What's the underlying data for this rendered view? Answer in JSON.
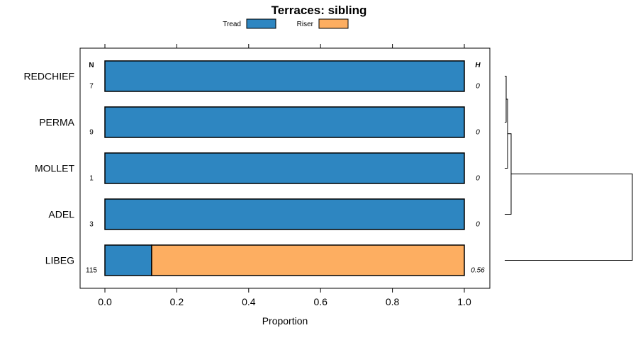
{
  "chart_data": {
    "type": "bar",
    "subtype": "stacked-horizontal-proportion",
    "title": "Terraces: sibling",
    "xlabel": "Proportion",
    "ylabel": "",
    "xlim": [
      -0.07,
      1.07
    ],
    "xticks": [
      "0.0",
      "0.2",
      "0.4",
      "0.6",
      "0.8",
      "1.0"
    ],
    "xtick_values": [
      0,
      0.2,
      0.4,
      0.6,
      0.8,
      1.0
    ],
    "legend_position": "top-center",
    "n_header": "N",
    "h_header": "H",
    "categories": [
      "REDCHIEF",
      "PERMA",
      "MOLLET",
      "ADEL",
      "LIBEG"
    ],
    "n_values": [
      "7",
      "9",
      "1",
      "3",
      "115"
    ],
    "h_values": [
      "0",
      "0",
      "0",
      "0",
      "0.56"
    ],
    "series": [
      {
        "name": "Tread",
        "color": "#2E86C1",
        "values": [
          1.0,
          1.0,
          1.0,
          1.0,
          0.13
        ]
      },
      {
        "name": "Riser",
        "color": "#FDAE61",
        "values": [
          0.0,
          0.0,
          0.0,
          0.0,
          0.87
        ]
      }
    ],
    "dendrogram": {
      "leaf_order": [
        "REDCHIEF",
        "PERMA",
        "MOLLET",
        "ADEL",
        "LIBEG"
      ],
      "merges": [
        {
          "a": "REDCHIEF",
          "b": "PERMA",
          "height": 0.01
        },
        {
          "a": "REDCHIEF+PERMA",
          "b": "MOLLET",
          "height": 0.02
        },
        {
          "a": "REDCHIEF+PERMA+MOLLET",
          "b": "ADEL",
          "height": 0.05
        },
        {
          "a": "REDCHIEF+PERMA+MOLLET+ADEL",
          "b": "LIBEG",
          "height": 1.0
        }
      ]
    }
  }
}
